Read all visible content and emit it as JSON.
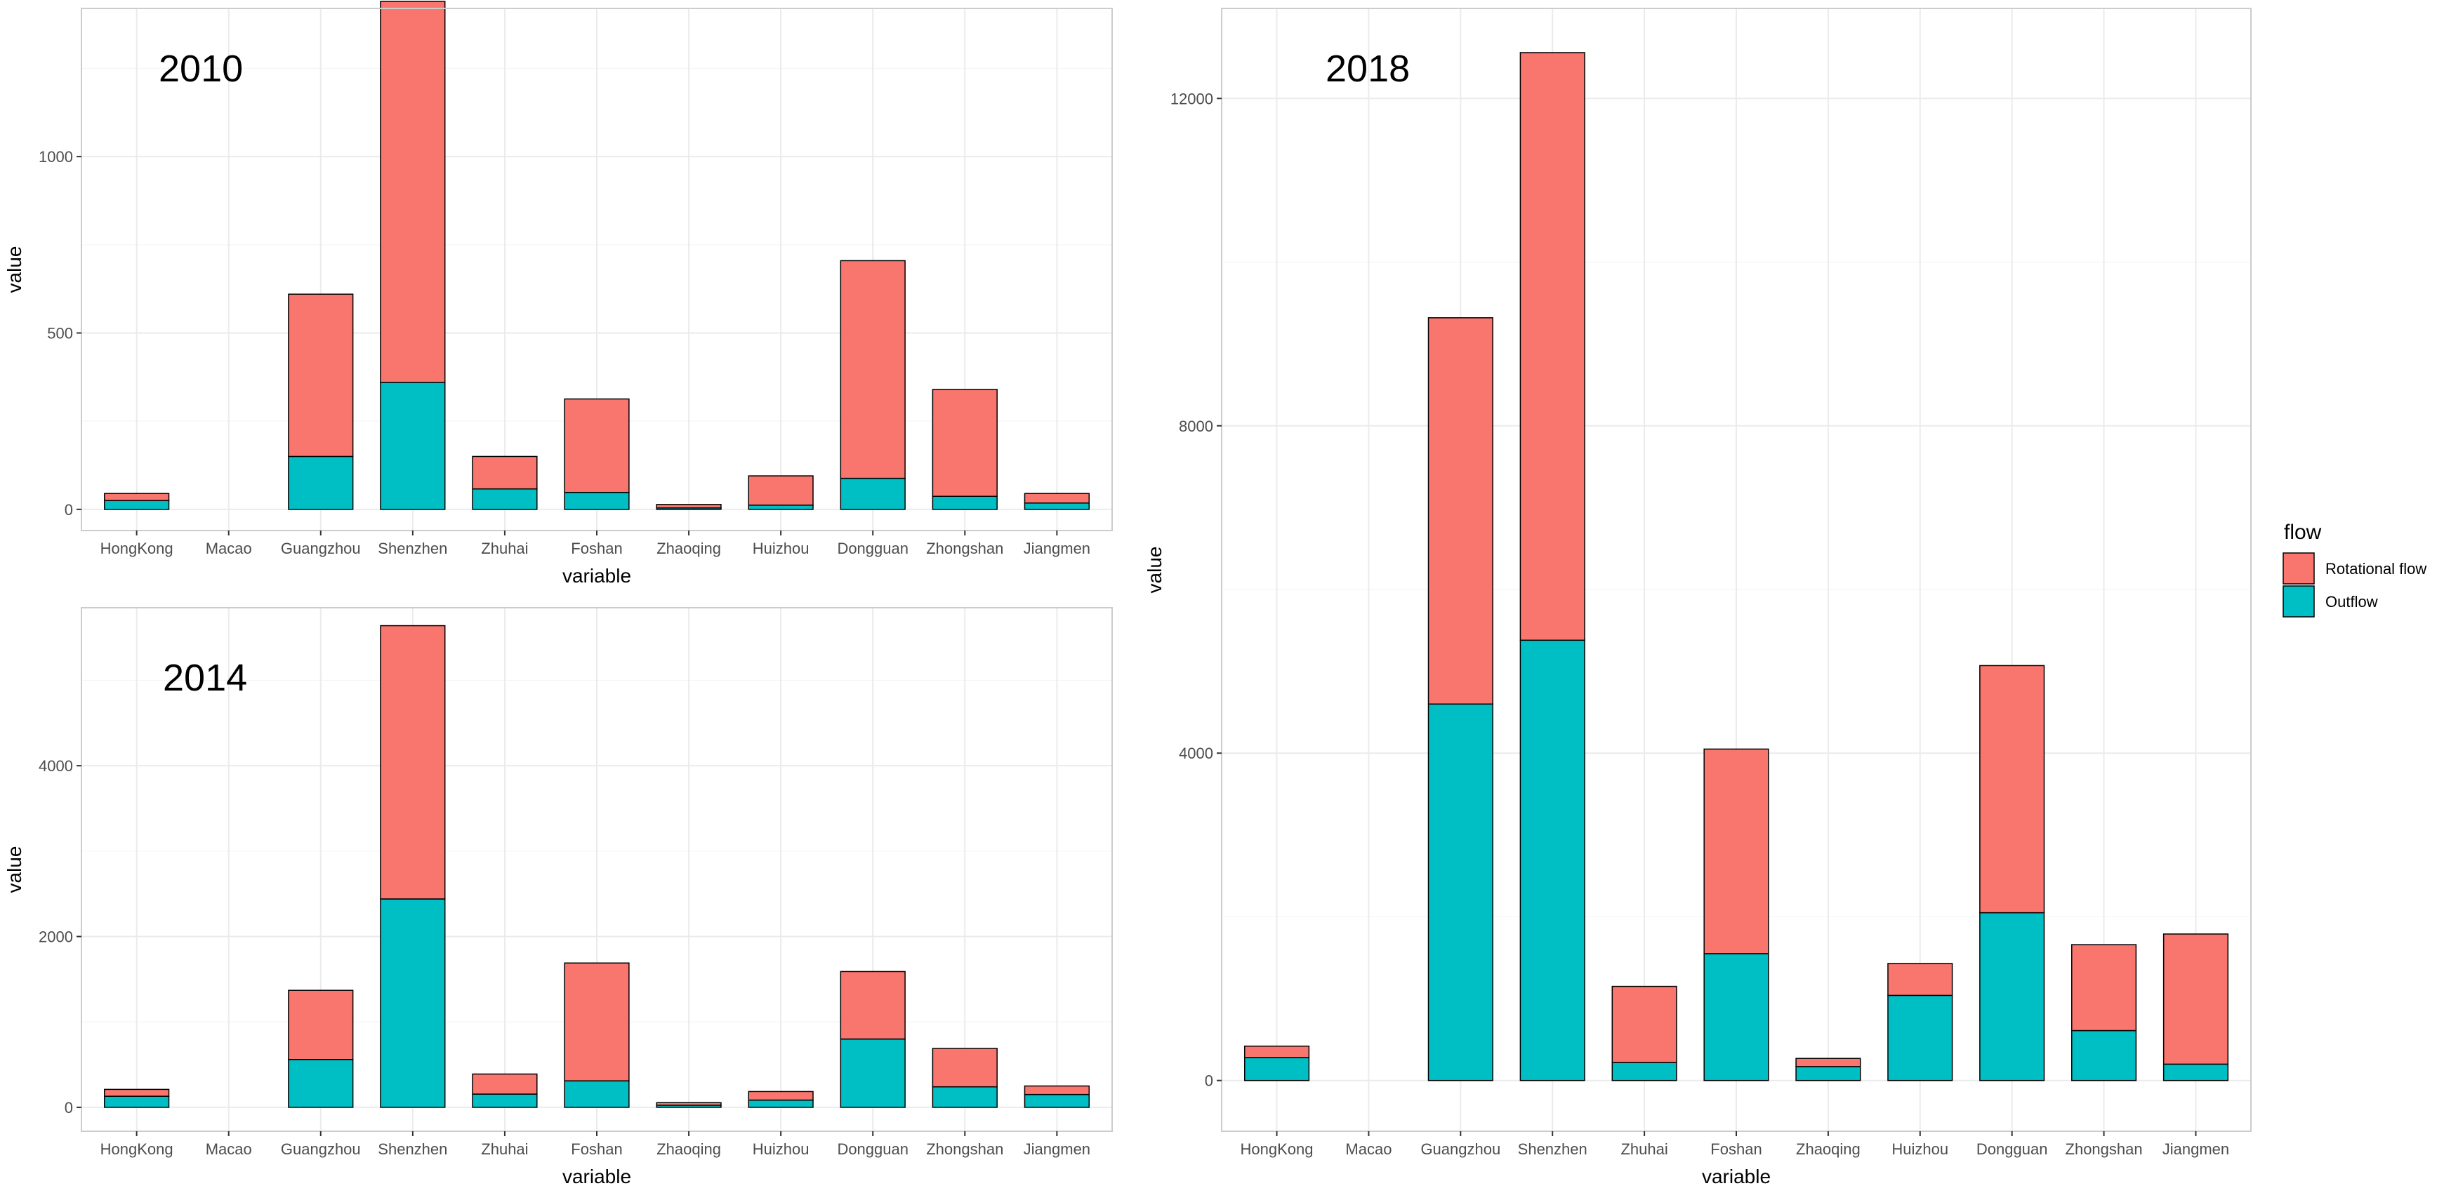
{
  "colors": {
    "rotational": "#F8766D",
    "outflow": "#00BFC4",
    "grid_major": "#EBEBEB",
    "grid_minor": "#F5F5F5",
    "panel_border": "#CCCCCC",
    "bar_outline": "#000000"
  },
  "legend": {
    "title": "flow",
    "items": [
      {
        "label": "Rotational flow",
        "color_key": "rotational"
      },
      {
        "label": "Outflow",
        "color_key": "outflow"
      }
    ],
    "placement": "right"
  },
  "chart_data": [
    {
      "type": "bar",
      "stacked": true,
      "title": "2010",
      "xlabel": "variable",
      "ylabel": "value",
      "ylim": [
        -60,
        1420
      ],
      "yticks": [
        0,
        500,
        1000
      ],
      "categories": [
        "HongKong",
        "Macao",
        "Guangzhou",
        "Shenzhen",
        "Zhuhai",
        "Foshan",
        "Zhaoqing",
        "Huizhou",
        "Dongguan",
        "Zhongshan",
        "Jiangmen"
      ],
      "series": [
        {
          "name": "Outflow",
          "values": [
            25,
            0,
            150,
            360,
            58,
            48,
            4,
            12,
            88,
            37,
            18
          ]
        },
        {
          "name": "Rotational flow",
          "values": [
            20,
            0,
            460,
            1080,
            92,
            265,
            10,
            83,
            617,
            303,
            27
          ]
        }
      ]
    },
    {
      "type": "bar",
      "stacked": true,
      "title": "2014",
      "xlabel": "variable",
      "ylabel": "value",
      "ylim": [
        -280,
        5850
      ],
      "yticks": [
        0,
        2000,
        4000
      ],
      "categories": [
        "HongKong",
        "Macao",
        "Guangzhou",
        "Shenzhen",
        "Zhuhai",
        "Foshan",
        "Zhaoqing",
        "Huizhou",
        "Dongguan",
        "Zhongshan",
        "Jiangmen"
      ],
      "series": [
        {
          "name": "Outflow",
          "values": [
            130,
            0,
            560,
            2440,
            155,
            310,
            25,
            85,
            800,
            240,
            150
          ]
        },
        {
          "name": "Rotational flow",
          "values": [
            80,
            0,
            810,
            3200,
            235,
            1380,
            30,
            100,
            790,
            450,
            100
          ]
        }
      ]
    },
    {
      "type": "bar",
      "stacked": true,
      "title": "2018",
      "xlabel": "variable",
      "ylabel": "value",
      "ylim": [
        -620,
        13100
      ],
      "yticks": [
        0,
        4000,
        8000,
        12000
      ],
      "categories": [
        "HongKong",
        "Macao",
        "Guangzhou",
        "Shenzhen",
        "Zhuhai",
        "Foshan",
        "Zhaoqing",
        "Huizhou",
        "Dongguan",
        "Zhongshan",
        "Jiangmen"
      ],
      "series": [
        {
          "name": "Outflow",
          "values": [
            280,
            0,
            4600,
            5380,
            220,
            1550,
            170,
            1040,
            2050,
            610,
            200
          ]
        },
        {
          "name": "Rotational flow",
          "values": [
            140,
            0,
            4720,
            7180,
            930,
            2500,
            100,
            390,
            3020,
            1050,
            1590
          ]
        }
      ]
    }
  ]
}
